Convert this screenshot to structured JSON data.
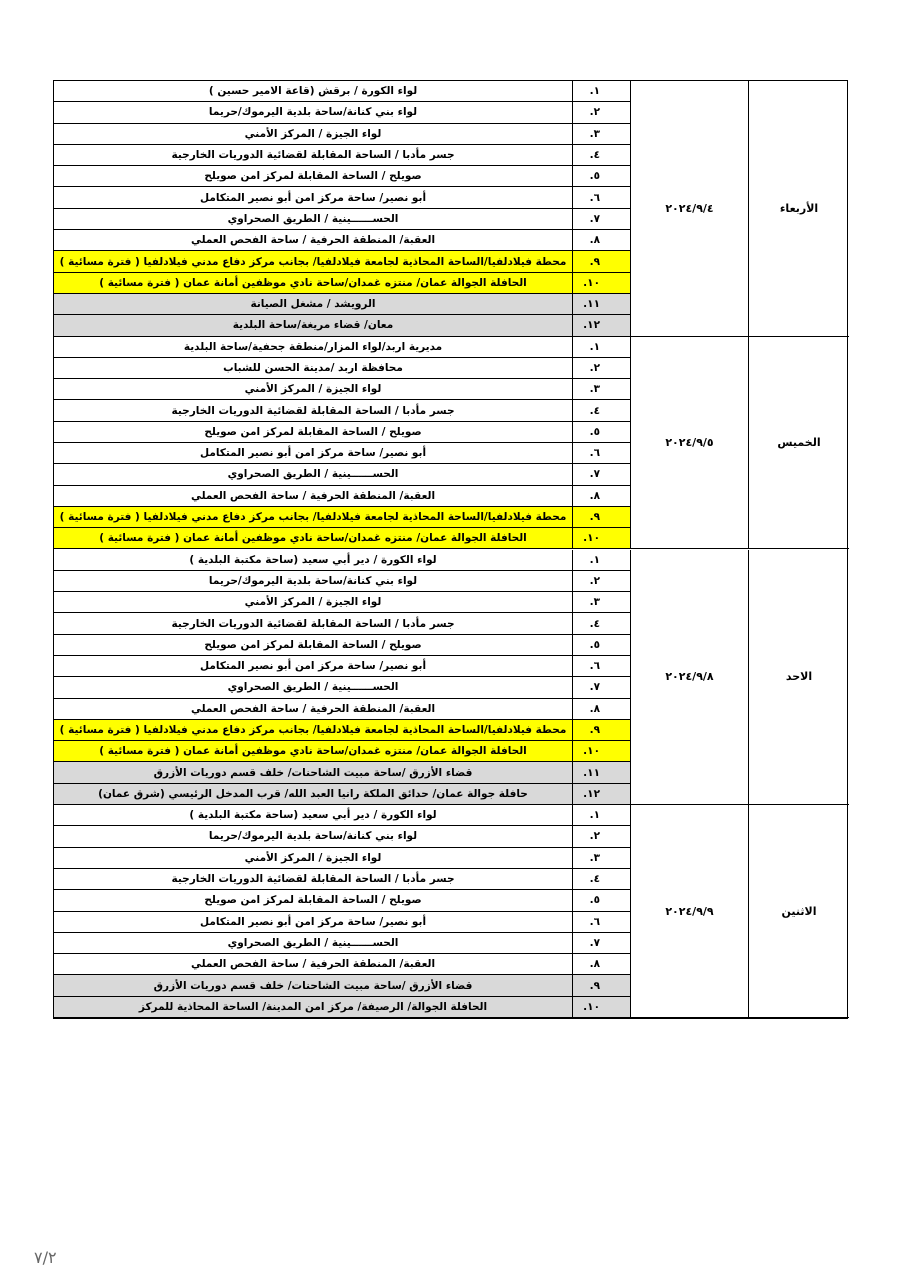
{
  "table": {
    "groups": [
      {
        "day": "الأربعاء",
        "date": "٢٠٢٤/٩/٤",
        "rows": [
          {
            "number": "١.",
            "location": "لواء الكورة / برقش (قاعة الامير حسين )"
          },
          {
            "number": "٢.",
            "location": "لواء بني كنانة/ساحة بلدية اليرموك/حريما"
          },
          {
            "number": "٣.",
            "location": "لواء الجيزة / المركز الأمني"
          },
          {
            "number": "٤.",
            "location": "جسر مأدبا / الساحة المقابلة لقضائية الدوريات الخارجية"
          },
          {
            "number": "٥.",
            "location": "صويلح / الساحة المقابلة لمركز امن صويلح"
          },
          {
            "number": "٦.",
            "location": "أبو نصير/ ساحة مركز امن أبو نصير المتكامل"
          },
          {
            "number": "٧.",
            "location": "الحســــــينية / الطريق الصحراوي"
          },
          {
            "number": "٨.",
            "location": "العقبة/ المنطقة الحرفية / ساحة الفحص العملي"
          },
          {
            "number": "٩.",
            "location": "محطة فيلادلفيا/الساحة المحاذية لجامعة فيلادلفيا/ بجانب مركز دفاع مدني فيلادلفيا ( فترة مسائية )"
          },
          {
            "number": "١٠.",
            "location": "الحافلة الجوالة عمان/ منتزه غمدان/ساحة نادي موظفين أمانة عمان ( فترة مسائية )"
          },
          {
            "number": "١١.",
            "location": "الرويشد / مشغل الصيانة"
          },
          {
            "number": "١٢.",
            "location": "معان/ قضاء مريغة/ساحة البلدية"
          }
        ]
      },
      {
        "day": "الخميس",
        "date": "٢٠٢٤/٩/٥",
        "rows": [
          {
            "number": "١.",
            "location": "مديرية اربد/لواء المزار/منطقة جحفية/ساحة البلدية"
          },
          {
            "number": "٢.",
            "location": "محافظة اربد /مدينة الحسن للشباب"
          },
          {
            "number": "٣.",
            "location": "لواء الجيزة / المركز الأمني"
          },
          {
            "number": "٤.",
            "location": "جسر مأدبا / الساحة المقابلة لقضائية الدوريات الخارجية"
          },
          {
            "number": "٥.",
            "location": "صويلح / الساحة المقابلة لمركز امن صويلح"
          },
          {
            "number": "٦.",
            "location": "أبو نصير/ ساحة مركز امن أبو نصير المتكامل"
          },
          {
            "number": "٧.",
            "location": "الحســــــينية / الطريق الصحراوي"
          },
          {
            "number": "٨.",
            "location": "العقبة/ المنطقة الحرفية / ساحة الفحص العملي"
          },
          {
            "number": "٩.",
            "location": "محطة فيلادلفيا/الساحة المحاذية لجامعة فيلادلفيا/ بجانب مركز دفاع مدني فيلادلفيا ( فترة مسائية )"
          },
          {
            "number": "١٠.",
            "location": "الحافلة الجوالة عمان/ منتزه غمدان/ساحة نادي موظفين أمانة عمان ( فترة مسائية )"
          }
        ]
      },
      {
        "day": "الاحد",
        "date": "٢٠٢٤/٩/٨",
        "rows": [
          {
            "number": "١.",
            "location": "لواء الكورة / دير أبي سعيد (ساحة مكتبة البلدية )"
          },
          {
            "number": "٢.",
            "location": "لواء بني كنانة/ساحة بلدية اليرموك/حريما"
          },
          {
            "number": "٣.",
            "location": "لواء الجيزة / المركز الأمني"
          },
          {
            "number": "٤.",
            "location": "جسر مأدبا / الساحة المقابلة لقضائية الدوريات الخارجية"
          },
          {
            "number": "٥.",
            "location": "صويلح / الساحة المقابلة لمركز امن صويلح"
          },
          {
            "number": "٦.",
            "location": "أبو نصير/ ساحة مركز امن أبو نصير المتكامل"
          },
          {
            "number": "٧.",
            "location": "الحســــــينية / الطريق الصحراوي"
          },
          {
            "number": "٨.",
            "location": "العقبة/ المنطقة الحرفية / ساحة الفحص العملي"
          },
          {
            "number": "٩.",
            "location": "محطة فيلادلفيا/الساحة المحاذية لجامعة فيلادلفيا/ بجانب مركز دفاع مدني فيلادلفيا ( فترة مسائية )"
          },
          {
            "number": "١٠.",
            "location": "الحافلة الجوالة عمان/ منتزه غمدان/ساحة نادي موظفين أمانة عمان ( فترة مسائية )"
          },
          {
            "number": "١١.",
            "location": "قضاء الأزرق /ساحة مبيت الشاحنات/ خلف قسم دوريات الأزرق"
          },
          {
            "number": "١٢.",
            "location": "حافلة جوالة عمان/ حدائق الملكة رانيا العبد الله/ قرب المدخل الرئيسي (شرق عمان)"
          }
        ]
      },
      {
        "day": "الاثنين",
        "date": "٢٠٢٤/٩/٩",
        "rows": [
          {
            "number": "١.",
            "location": "لواء الكورة / دير أبي سعيد (ساحة مكتبة البلدية )"
          },
          {
            "number": "٢.",
            "location": "لواء بني كنانة/ساحة بلدية اليرموك/حريما"
          },
          {
            "number": "٣.",
            "location": "لواء الجيزة / المركز الأمني"
          },
          {
            "number": "٤.",
            "location": "جسر مأدبا / الساحة المقابلة لقضائية الدوريات الخارجية"
          },
          {
            "number": "٥.",
            "location": "صويلح / الساحة المقابلة لمركز امن صويلح"
          },
          {
            "number": "٦.",
            "location": "أبو نصير/ ساحة مركز امن أبو نصير المتكامل"
          },
          {
            "number": "٧.",
            "location": "الحســــــينية / الطريق الصحراوي"
          },
          {
            "number": "٨.",
            "location": "العقبة/ المنطقة الحرفية / ساحة الفحص العملي"
          },
          {
            "number": "٩.",
            "location": "قضاء الأزرق /ساحة مبيت الشاحنات/ خلف قسم دوريات الأزرق"
          },
          {
            "number": "١٠.",
            "location": "الحافلة الجوالة/ الرصيفة/ مركز امن المدينة/ الساحة المحاذية للمركز"
          }
        ]
      }
    ]
  },
  "footer": "٧/٢"
}
